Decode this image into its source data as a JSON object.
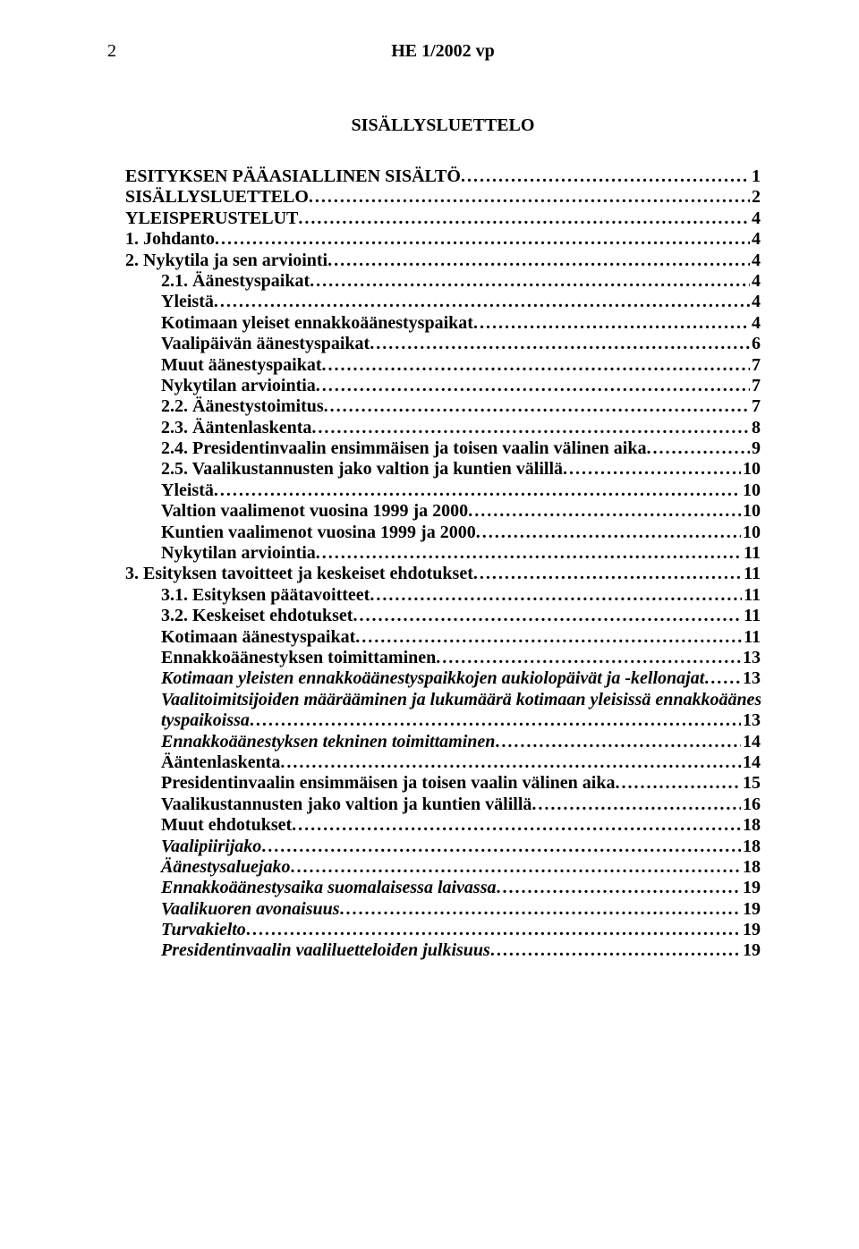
{
  "pageNumberTop": "2",
  "docId": "HE 1/2002 vp",
  "mainTitle": "SISÄLLYSLUETTELO",
  "toc": [
    {
      "label": "ESITYKSEN PÄÄASIALLINEN SISÄLTÖ",
      "page": "1",
      "indent": 0,
      "bold": true,
      "italic": false
    },
    {
      "label": "SISÄLLYSLUETTELO",
      "page": "2",
      "indent": 0,
      "bold": true,
      "italic": false
    },
    {
      "label": "YLEISPERUSTELUT",
      "page": "4",
      "indent": 0,
      "bold": true,
      "italic": false
    },
    {
      "label": "1.   Johdanto",
      "page": "4",
      "indent": 0,
      "bold": true,
      "italic": false
    },
    {
      "label": "2.   Nykytila ja sen arviointi",
      "page": "4",
      "indent": 0,
      "bold": true,
      "italic": false
    },
    {
      "label": "2.1.     Äänestyspaikat",
      "page": "4",
      "indent": 1,
      "bold": true,
      "italic": false
    },
    {
      "label": "Yleistä",
      "page": "4",
      "indent": 1,
      "bold": true,
      "italic": false
    },
    {
      "label": "Kotimaan yleiset ennakkoäänestyspaikat",
      "page": "4",
      "indent": 1,
      "bold": true,
      "italic": false
    },
    {
      "label": "Vaalipäivän äänestyspaikat",
      "page": "6",
      "indent": 1,
      "bold": true,
      "italic": false
    },
    {
      "label": "Muut äänestyspaikat",
      "page": "7",
      "indent": 1,
      "bold": true,
      "italic": false
    },
    {
      "label": "Nykytilan arviointia",
      "page": "7",
      "indent": 1,
      "bold": true,
      "italic": false
    },
    {
      "label": "2.2.     Äänestystoimitus",
      "page": "7",
      "indent": 1,
      "bold": true,
      "italic": false
    },
    {
      "label": "2.3.     Ääntenlaskenta",
      "page": "8",
      "indent": 1,
      "bold": true,
      "italic": false
    },
    {
      "label": "2.4.     Presidentinvaalin ensimmäisen ja toisen vaalin välinen aika",
      "page": "9",
      "indent": 1,
      "bold": true,
      "italic": false
    },
    {
      "label": "2.5.     Vaalikustannusten jako valtion ja kuntien välillä",
      "page": "10",
      "indent": 1,
      "bold": true,
      "italic": false
    },
    {
      "label": "Yleistä",
      "page": "10",
      "indent": 1,
      "bold": true,
      "italic": false
    },
    {
      "label": "Valtion vaalimenot vuosina 1999 ja 2000",
      "page": "10",
      "indent": 1,
      "bold": true,
      "italic": false
    },
    {
      "label": "Kuntien vaalimenot vuosina 1999 ja 2000",
      "page": "10",
      "indent": 1,
      "bold": true,
      "italic": false
    },
    {
      "label": "Nykytilan arviointia",
      "page": "11",
      "indent": 1,
      "bold": true,
      "italic": false
    },
    {
      "label": "3.   Esityksen tavoitteet ja keskeiset ehdotukset",
      "page": "11",
      "indent": 0,
      "bold": true,
      "italic": false
    },
    {
      "label": "3.1.     Esityksen päätavoitteet",
      "page": "11",
      "indent": 1,
      "bold": true,
      "italic": false
    },
    {
      "label": "3.2.     Keskeiset ehdotukset",
      "page": "11",
      "indent": 1,
      "bold": true,
      "italic": false
    },
    {
      "label": "Kotimaan äänestyspaikat",
      "page": "11",
      "indent": 1,
      "bold": true,
      "italic": false
    },
    {
      "label": "Ennakkoäänestyksen toimittaminen",
      "page": "13",
      "indent": 1,
      "bold": true,
      "italic": false
    },
    {
      "label": "Kotimaan yleisten ennakkoäänestyspaikkojen aukiolopäivät ja -kellonajat",
      "page": "13",
      "indent": 1,
      "bold": true,
      "italic": true
    },
    {
      "label": "Vaalitoimitsijoiden määrääminen ja lukumäärä kotimaan yleisissä ennakkoäänes-",
      "page": null,
      "indent": 1,
      "bold": true,
      "italic": true
    },
    {
      "label": "tyspaikoissa",
      "page": "13",
      "indent": 1,
      "bold": true,
      "italic": true
    },
    {
      "label": "Ennakkoäänestyksen tekninen toimittaminen",
      "page": "14",
      "indent": 1,
      "bold": true,
      "italic": true
    },
    {
      "label": "Ääntenlaskenta",
      "page": "14",
      "indent": 1,
      "bold": true,
      "italic": false
    },
    {
      "label": "Presidentinvaalin ensimmäisen ja toisen vaalin välinen aika",
      "page": "15",
      "indent": 1,
      "bold": true,
      "italic": false
    },
    {
      "label": "Vaalikustannusten jako valtion ja kuntien välillä",
      "page": "16",
      "indent": 1,
      "bold": true,
      "italic": false
    },
    {
      "label": "Muut ehdotukset",
      "page": "18",
      "indent": 1,
      "bold": true,
      "italic": false
    },
    {
      "label": "Vaalipiirijako",
      "page": "18",
      "indent": 1,
      "bold": true,
      "italic": true
    },
    {
      "label": "Äänestysaluejako",
      "page": "18",
      "indent": 1,
      "bold": true,
      "italic": true
    },
    {
      "label": "Ennakkoäänestysaika suomalaisessa laivassa",
      "page": "19",
      "indent": 1,
      "bold": true,
      "italic": true
    },
    {
      "label": "Vaalikuoren avonaisuus",
      "page": "19",
      "indent": 1,
      "bold": true,
      "italic": true
    },
    {
      "label": "Turvakielto",
      "page": "19",
      "indent": 1,
      "bold": true,
      "italic": true
    },
    {
      "label": "Presidentinvaalin vaaliluetteloiden julkisuus",
      "page": "19",
      "indent": 1,
      "bold": true,
      "italic": true
    }
  ]
}
